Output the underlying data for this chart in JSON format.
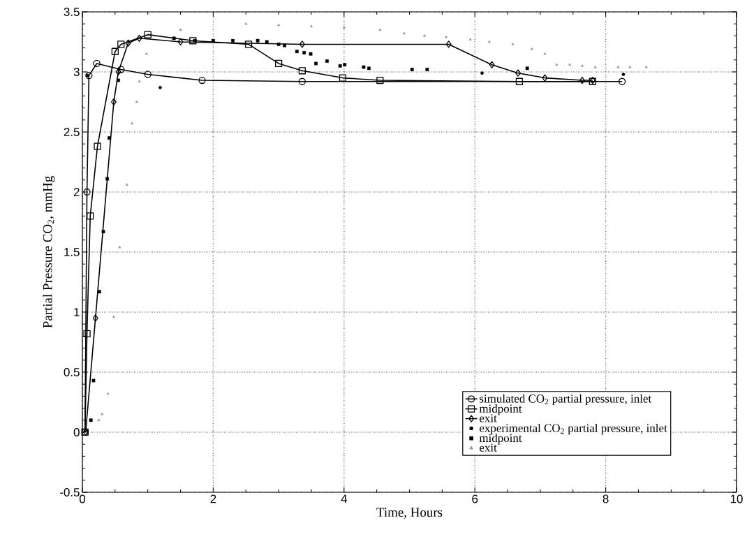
{
  "chart_data": {
    "type": "line",
    "xlabel": "Time, Hours",
    "ylabel": "Partial Pressure CO$_{2}$, mmHg",
    "xlim": [
      0,
      10
    ],
    "ylim": [
      -0.5,
      3.5
    ],
    "xticks": [
      0,
      2,
      4,
      6,
      8,
      10
    ],
    "yticks": [
      -0.5,
      0,
      0.5,
      1,
      1.5,
      2,
      2.5,
      3,
      3.5
    ],
    "grid": true,
    "legend": "bottom right",
    "series": [
      {
        "name": "simulated CO$_{2}$ partial pressure, inlet",
        "marker": "circle",
        "color": "#000000",
        "x": [
          0.04,
          0.07,
          0.1,
          0.22,
          0.59,
          1.0,
          1.83,
          3.36,
          8.25
        ],
        "values": [
          0,
          2.0,
          2.97,
          3.07,
          3.02,
          2.98,
          2.93,
          2.92,
          2.92
        ]
      },
      {
        "name": "midpoint",
        "marker": "square",
        "color": "#000000",
        "x": [
          0.04,
          0.07,
          0.12,
          0.23,
          0.5,
          0.59,
          1.0,
          1.69,
          2.54,
          3.0,
          3.36,
          3.98,
          4.55,
          6.68,
          7.8
        ],
        "values": [
          0,
          0.82,
          1.8,
          2.38,
          3.17,
          3.23,
          3.31,
          3.26,
          3.23,
          3.07,
          3.01,
          2.95,
          2.93,
          2.92,
          2.92
        ]
      },
      {
        "name": "exit",
        "marker": "diamond",
        "color": "#000000",
        "x": [
          0.05,
          0.2,
          0.48,
          0.55,
          0.7,
          0.87,
          1.5,
          3.36,
          5.6,
          6.26,
          6.66,
          7.07,
          7.64,
          7.8
        ],
        "values": [
          0,
          0.95,
          2.75,
          3.0,
          3.24,
          3.28,
          3.25,
          3.23,
          3.23,
          3.06,
          2.99,
          2.95,
          2.93,
          2.93
        ]
      },
      {
        "name": "experimental CO$_{2}$ partial pressure, inlet",
        "type": "scatter",
        "marker": "circle",
        "color": "#000000",
        "x": [
          0.08,
          1.19,
          6.11,
          8.27
        ],
        "values": [
          2.97,
          2.87,
          2.99,
          2.98
        ]
      },
      {
        "name": "midpoint",
        "type": "scatter",
        "marker": "square",
        "color": "#000000",
        "x": [
          0.13,
          0.17,
          0.26,
          0.32,
          0.38,
          0.41,
          0.55,
          1.4,
          1.72,
          2.0,
          2.3,
          2.68,
          2.82,
          3.0,
          3.09,
          3.28,
          3.39,
          3.49,
          3.57,
          3.74,
          3.94,
          4.01,
          4.3,
          4.38,
          5.04,
          5.27,
          6.8
        ],
        "values": [
          0.1,
          0.43,
          1.17,
          1.67,
          2.11,
          2.45,
          2.93,
          3.28,
          3.26,
          3.26,
          3.26,
          3.26,
          3.25,
          3.23,
          3.22,
          3.17,
          3.16,
          3.15,
          3.07,
          3.09,
          3.05,
          3.06,
          3.04,
          3.03,
          3.02,
          3.02,
          3.03
        ]
      },
      {
        "name": "exit",
        "type": "scatter",
        "marker": "triangle",
        "color": "#999999",
        "x": [
          0.25,
          0.3,
          0.39,
          0.48,
          0.57,
          0.68,
          0.76,
          0.83,
          0.87,
          0.98,
          1.5,
          2.5,
          3.0,
          3.5,
          4.0,
          4.55,
          4.92,
          5.23,
          5.56,
          5.93,
          6.22,
          6.58,
          6.87,
          7.07,
          7.25,
          7.45,
          7.64,
          7.84,
          8.19,
          8.37,
          8.62
        ],
        "values": [
          0.1,
          0.15,
          0.32,
          0.96,
          1.54,
          2.06,
          2.57,
          2.75,
          2.92,
          3.15,
          3.35,
          3.4,
          3.39,
          3.38,
          3.37,
          3.35,
          3.32,
          3.3,
          3.29,
          3.27,
          3.25,
          3.23,
          3.19,
          3.15,
          3.06,
          3.06,
          3.05,
          3.04,
          3.04,
          3.04,
          3.04
        ]
      }
    ]
  }
}
